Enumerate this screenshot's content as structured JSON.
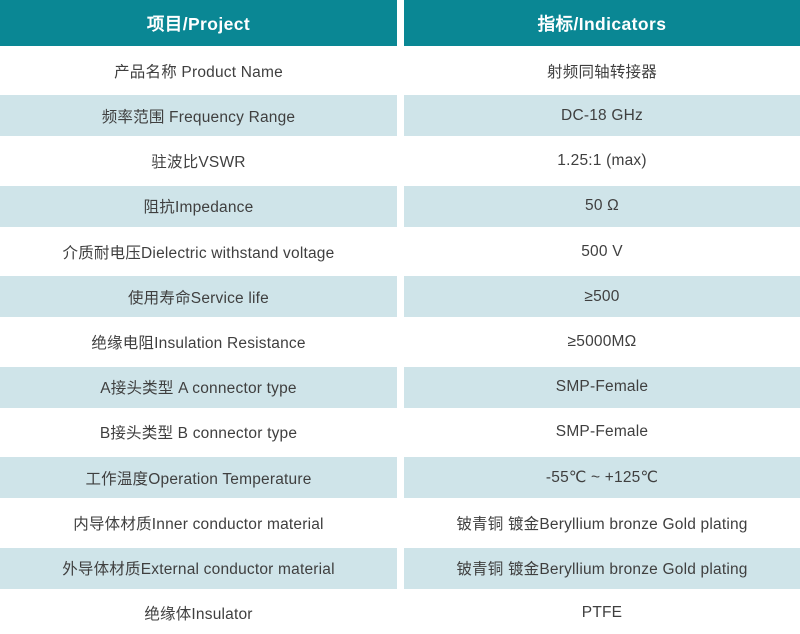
{
  "colors": {
    "header_background": "#0a8794",
    "alt_row_background": "#cfe4e9",
    "body_text": "#3f3f3f",
    "header_text": "#ffffff"
  },
  "table": {
    "header": {
      "project": "项目/Project",
      "indicators": "指标/Indicators"
    },
    "rows": [
      {
        "label": "产品名称 Product Name",
        "value": "射频同轴转接器"
      },
      {
        "label": "频率范围 Frequency Range",
        "value": "DC-18 GHz"
      },
      {
        "label": "驻波比VSWR",
        "value": "1.25:1 (max)"
      },
      {
        "label": "阻抗Impedance",
        "value": "50 Ω"
      },
      {
        "label": "介质耐电压Dielectric withstand voltage",
        "value": "500 V"
      },
      {
        "label": "使用寿命Service life",
        "value": "≥500"
      },
      {
        "label": "绝缘电阻Insulation Resistance",
        "value": "≥5000MΩ"
      },
      {
        "label": "A接头类型 A connector type",
        "value": "SMP-Female"
      },
      {
        "label": "B接头类型 B connector type",
        "value": "SMP-Female"
      },
      {
        "label": "工作温度Operation Temperature",
        "value": "-55℃ ~ +125℃"
      },
      {
        "label": "内导体材质Inner conductor material",
        "value": "铍青铜 镀金Beryllium bronze Gold plating"
      },
      {
        "label": "外导体材质External conductor material",
        "value": "铍青铜 镀金Beryllium bronze Gold plating"
      },
      {
        "label": "绝缘体Insulator",
        "value": "PTFE"
      }
    ]
  }
}
